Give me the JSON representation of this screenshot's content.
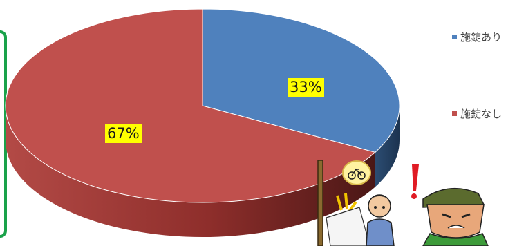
{
  "chart_data": {
    "type": "pie",
    "categories": [
      "施錠あり",
      "施錠なし"
    ],
    "values": [
      33,
      67
    ],
    "value_labels": [
      "33%",
      "67%"
    ],
    "colors": [
      "#4f81bd",
      "#c0504d"
    ],
    "legend_position": "right",
    "style": "3d-tilted"
  }
}
